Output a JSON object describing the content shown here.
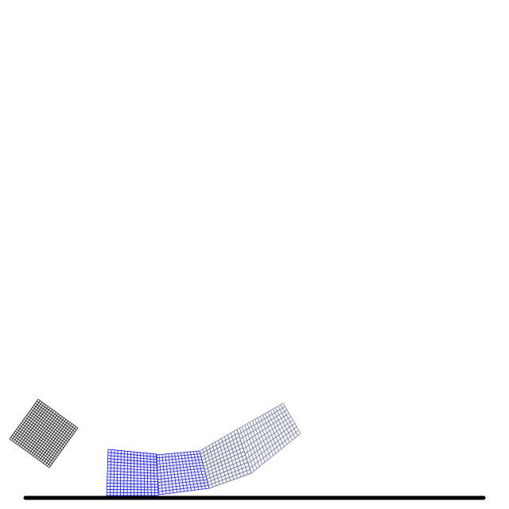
{
  "scene": {
    "background": "#ffffff",
    "ground_color": "#000000",
    "blocks": [
      {
        "name": "dark-block",
        "color": "#000000",
        "cols": 20,
        "rows": 20
      },
      {
        "name": "blue-block-left",
        "color": "#0000ff",
        "cols": 15,
        "rows": 15
      },
      {
        "name": "blue-block-right",
        "color": "#1a1ad8",
        "cols": 14,
        "rows": 13
      },
      {
        "name": "slate-block-lower",
        "color": "#5a5f8c",
        "cols": 12,
        "rows": 12
      },
      {
        "name": "slate-block-upper",
        "color": "#6b6f96",
        "cols": 18,
        "rows": 9
      }
    ]
  }
}
